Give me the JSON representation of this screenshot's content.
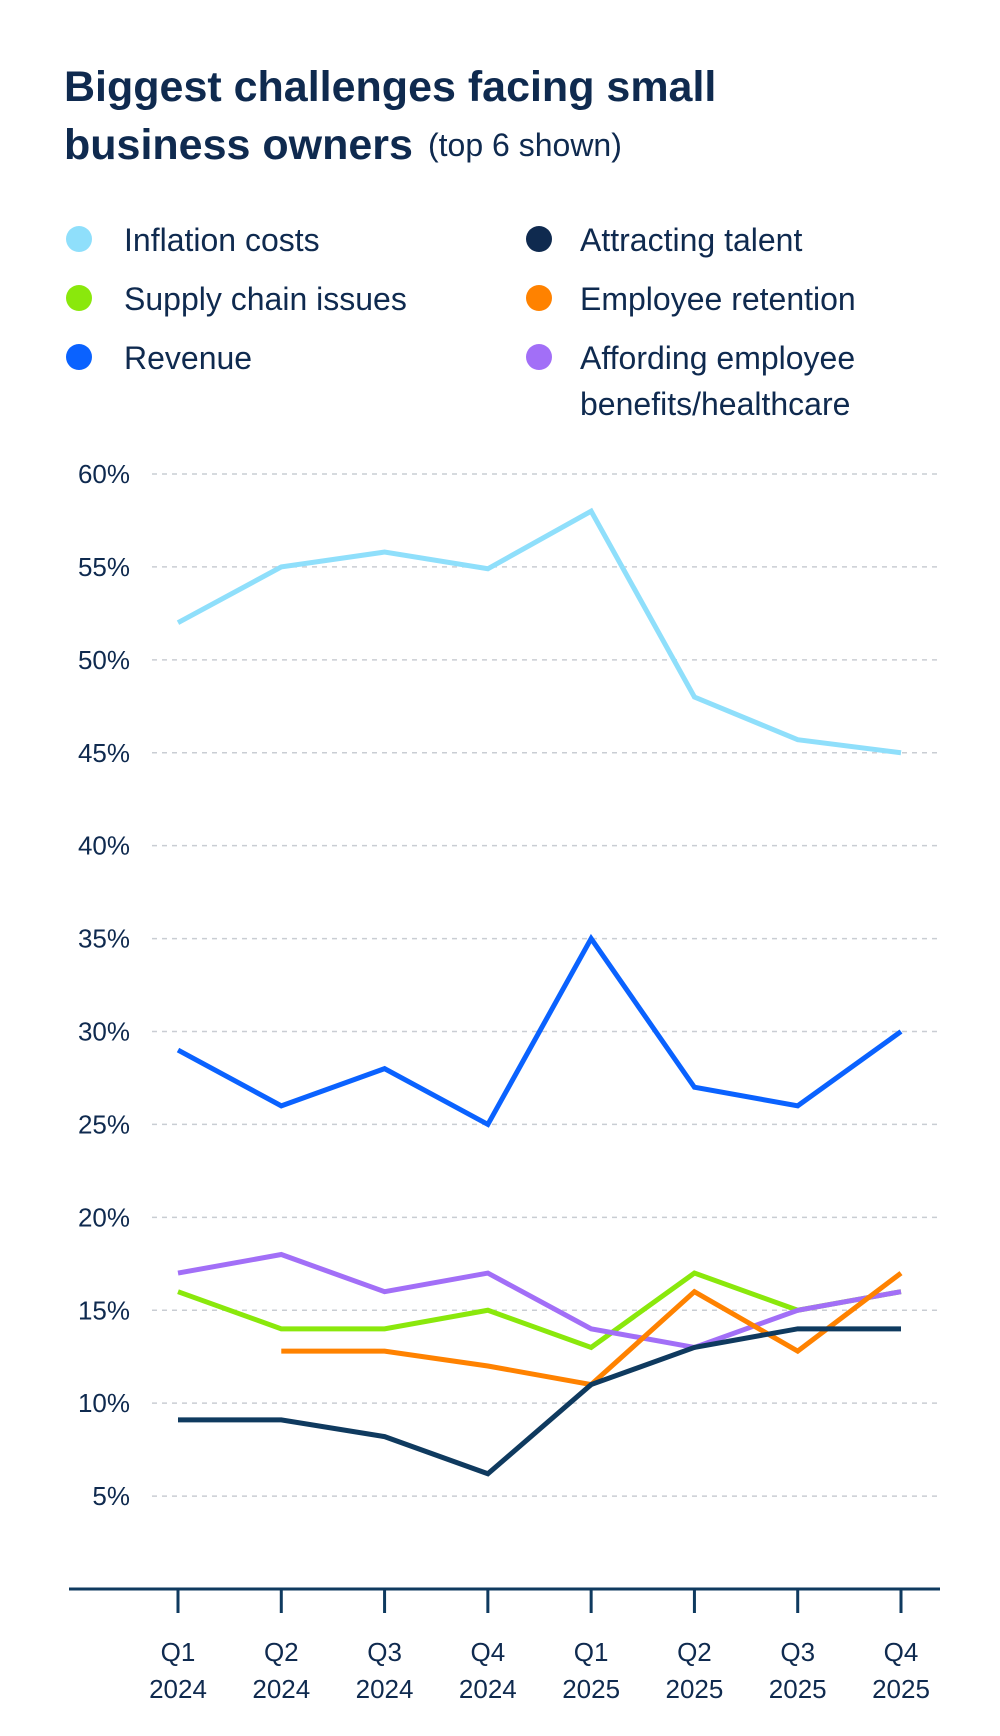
{
  "chart_data": {
    "type": "line",
    "title": "Biggest challenges facing small business owners",
    "subtitle": "(top 6 shown)",
    "categories": [
      "Q1\n2024",
      "Q2\n2024",
      "Q3\n2024",
      "Q4\n2024",
      "Q1\n2025",
      "Q2\n2025",
      "Q3\n2025",
      "Q4\n2025"
    ],
    "category_lines": [
      [
        "Q1",
        "2024"
      ],
      [
        "Q2",
        "2024"
      ],
      [
        "Q3",
        "2024"
      ],
      [
        "Q4",
        "2024"
      ],
      [
        "Q1",
        "2025"
      ],
      [
        "Q2",
        "2025"
      ],
      [
        "Q3",
        "2025"
      ],
      [
        "Q4",
        "2025"
      ]
    ],
    "yticks": [
      "5%",
      "10%",
      "15%",
      "20%",
      "25%",
      "30%",
      "35%",
      "40%",
      "45%",
      "50%",
      "55%",
      "60%"
    ],
    "ytick_values": [
      5,
      10,
      15,
      20,
      25,
      30,
      35,
      40,
      45,
      50,
      55,
      60
    ],
    "ylim": [
      0,
      60
    ],
    "grid": true,
    "legend_placement": "top",
    "series": [
      {
        "name": "Inflation costs",
        "color": "#8fdffb",
        "values": [
          52,
          55,
          55.8,
          54.9,
          58,
          48,
          45.7,
          45
        ]
      },
      {
        "name": "Supply chain issues",
        "color": "#8ae80c",
        "values": [
          16,
          14,
          14,
          15,
          13,
          17,
          15,
          16
        ]
      },
      {
        "name": "Revenue",
        "color": "#0a62ff",
        "values": [
          29,
          26,
          28,
          25,
          35,
          27,
          26,
          30
        ]
      },
      {
        "name": "Attracting talent",
        "color": "#0f3a5f",
        "values": [
          9.1,
          9.1,
          8.2,
          6.2,
          11,
          13,
          14,
          14
        ]
      },
      {
        "name": "Employee retention",
        "color": "#ff8200",
        "values": [
          null,
          12.8,
          12.8,
          12,
          11,
          16,
          12.8,
          17
        ]
      },
      {
        "name": "Affording employee benefits/healthcare",
        "name_lines": [
          "Affording employee",
          "benefits/healthcare"
        ],
        "color": "#a26ff7",
        "values": [
          17,
          18,
          16,
          17,
          14,
          13,
          15,
          16
        ]
      }
    ]
  }
}
